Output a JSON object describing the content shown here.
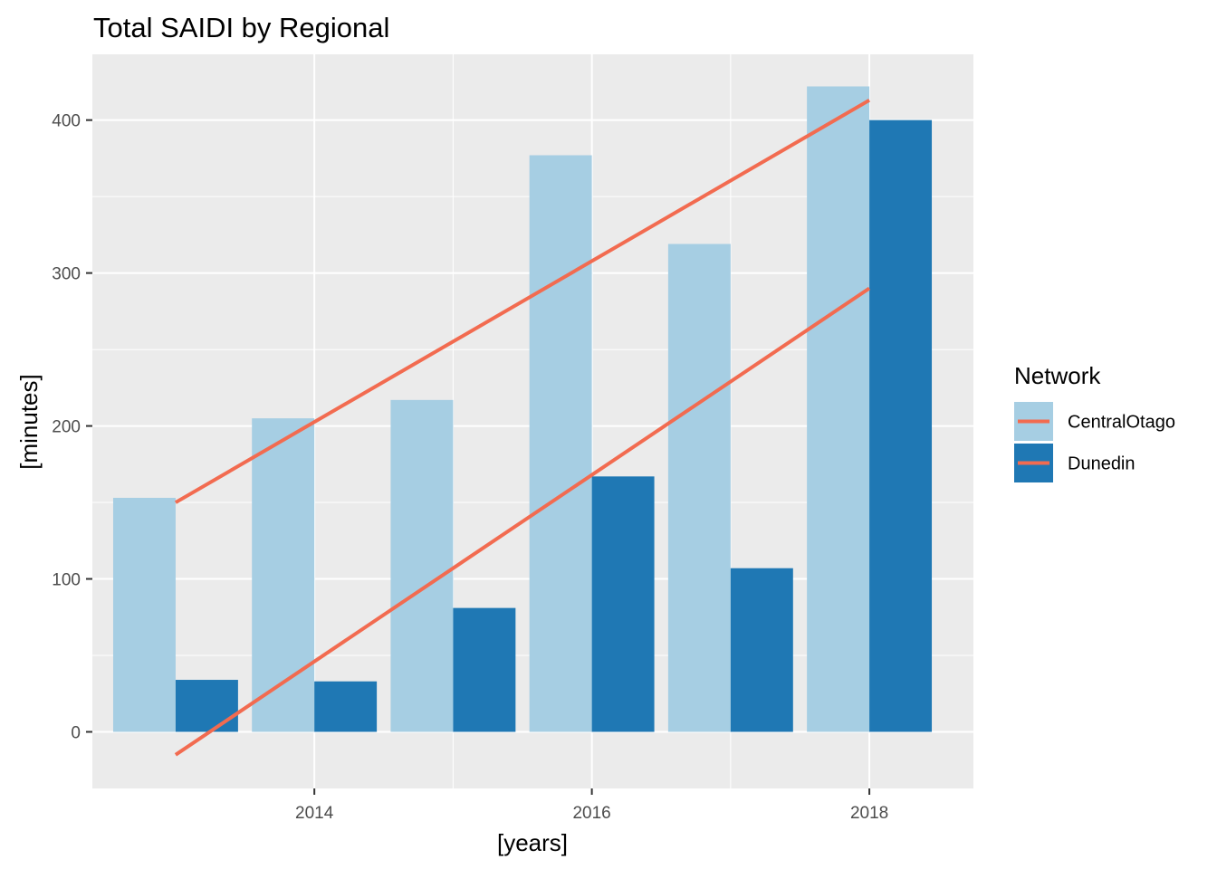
{
  "chart_data": {
    "type": "bar",
    "title": "Total SAIDI by Regional",
    "xlabel": "[years]",
    "ylabel": "[minutes]",
    "x": [
      2013,
      2014,
      2015,
      2016,
      2017,
      2018
    ],
    "xticks": [
      2014,
      2016,
      2018
    ],
    "yticks": [
      0,
      100,
      200,
      300,
      400
    ],
    "xlim": [
      2012.4,
      2018.75
    ],
    "ylim": [
      -37,
      443
    ],
    "grid": true,
    "legend_title": "Network",
    "legend_position": "right",
    "series": [
      {
        "name": "CentralOtago",
        "color": "#a6cee3",
        "values": [
          153,
          205,
          217,
          377,
          319,
          422
        ]
      },
      {
        "name": "Dunedin",
        "color": "#1f78b4",
        "values": [
          34,
          33,
          81,
          167,
          107,
          400
        ]
      }
    ],
    "trend_lines": [
      {
        "series": "CentralOtago",
        "color": "#f26b50",
        "x": [
          2013,
          2018
        ],
        "y": [
          150,
          413
        ]
      },
      {
        "series": "Dunedin",
        "color": "#f26b50",
        "x": [
          2013,
          2018
        ],
        "y": [
          -15,
          290
        ]
      }
    ]
  }
}
